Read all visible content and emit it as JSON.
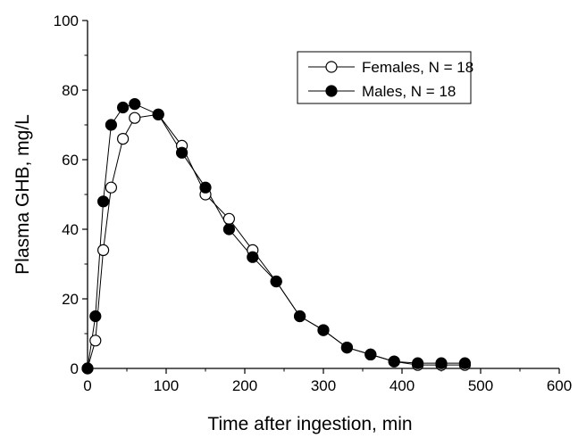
{
  "chart_data": {
    "type": "line",
    "title": "",
    "xlabel": "Time after ingestion, min",
    "ylabel": "Plasma GHB, mg/L",
    "xlim": [
      0,
      600
    ],
    "ylim": [
      0,
      100
    ],
    "xticks": [
      0,
      100,
      200,
      300,
      400,
      500,
      600
    ],
    "yticks": [
      0,
      20,
      40,
      60,
      80,
      100
    ],
    "grid": false,
    "legend_position": "top-right",
    "series": [
      {
        "name": "Females, N = 18",
        "marker": "open-circle",
        "color": "#000000",
        "x": [
          0,
          10,
          20,
          30,
          45,
          60,
          90,
          120,
          150,
          180,
          210,
          240,
          270,
          300,
          330,
          360,
          390,
          420,
          450,
          480
        ],
        "y": [
          0,
          8,
          34,
          52,
          66,
          72,
          73,
          64,
          50,
          43,
          34,
          25,
          15,
          11,
          6,
          4,
          2,
          1,
          1,
          1
        ]
      },
      {
        "name": "Males, N = 18",
        "marker": "filled-circle",
        "color": "#000000",
        "x": [
          0,
          10,
          20,
          30,
          45,
          60,
          90,
          120,
          150,
          180,
          210,
          240,
          270,
          300,
          330,
          360,
          390,
          420,
          450,
          480
        ],
        "y": [
          0,
          15,
          48,
          70,
          75,
          76,
          73,
          62,
          52,
          40,
          32,
          25,
          15,
          11,
          6,
          4,
          2,
          1.5,
          1.5,
          1.5
        ]
      }
    ]
  }
}
